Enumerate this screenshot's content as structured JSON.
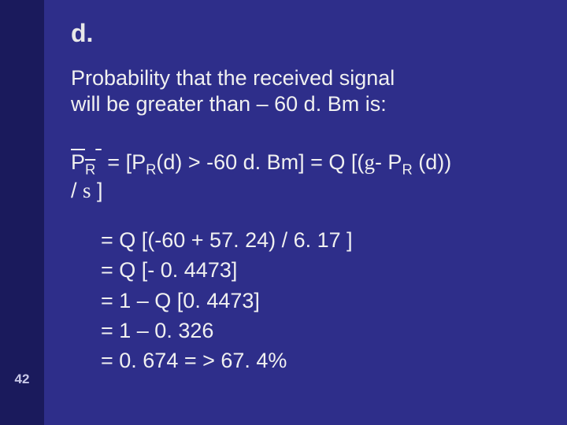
{
  "colors": {
    "left_rail_bg": "#1a1a5c",
    "main_bg": "#2e2e8a",
    "text": "#e8e8e8",
    "page_num": "#c8c8e8"
  },
  "typography": {
    "heading_fontsize": 32,
    "body_fontsize": 27,
    "pagenum_fontsize": 17,
    "font_family": "Arial"
  },
  "page_number": "42",
  "heading": "d.",
  "intro_line1": "Probability that the received signal",
  "intro_line2": "will be greater than – 60 d. Bm is:",
  "equation": {
    "lhs_base": "P",
    "lhs_sub": "R",
    "part1a": " = [P",
    "part1b_sub": "R",
    "part1c": "(d) > -60 d. Bm] = Q [(",
    "gamma": "g",
    "part1d": "- P",
    "part1e_sub": "R",
    "part1f": " (d))",
    "line2a": "/ ",
    "sigma": "s",
    "line2b": " ]"
  },
  "steps": [
    "= Q [(-60 + 57. 24) / 6. 17 ]",
    "= Q [- 0. 4473]",
    "= 1 – Q [0. 4473]",
    "= 1 – 0. 326",
    "= 0. 674 = > 67. 4%"
  ]
}
